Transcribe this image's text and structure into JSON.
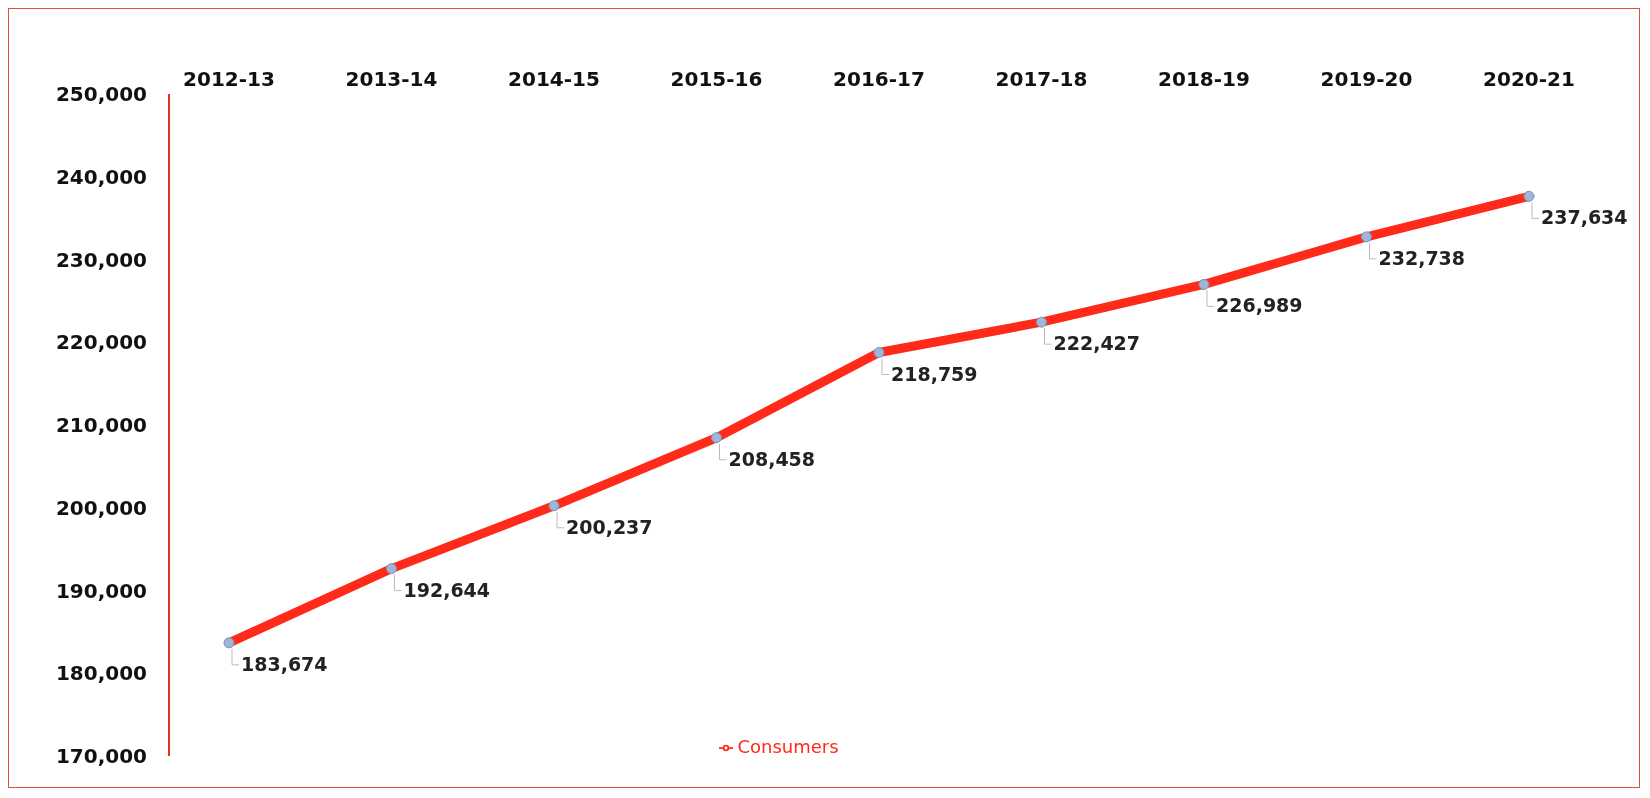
{
  "chart_data": {
    "type": "line",
    "categories": [
      "2012-13",
      "2013-14",
      "2014-15",
      "2015-16",
      "2016-17",
      "2017-18",
      "2018-19",
      "2019-20",
      "2020-21"
    ],
    "series": [
      {
        "name": "Consumers",
        "color": "#ff2a1a",
        "values": [
          183674,
          192644,
          200237,
          208458,
          218759,
          222427,
          226989,
          232738,
          237634
        ],
        "value_labels": [
          "183,674",
          "192,644",
          "200,237",
          "208,458",
          "218,759",
          "222,427",
          "226,989",
          "232,738",
          "237,634"
        ]
      }
    ],
    "ylim": [
      170000,
      250000
    ],
    "yticks": [
      {
        "value": 170000,
        "label": "170,000"
      },
      {
        "value": 180000,
        "label": "180,000"
      },
      {
        "value": 190000,
        "label": "190,000"
      },
      {
        "value": 200000,
        "label": "200,000"
      },
      {
        "value": 210000,
        "label": "210,000"
      },
      {
        "value": 220000,
        "label": "220,000"
      },
      {
        "value": 230000,
        "label": "230,000"
      },
      {
        "value": 240000,
        "label": "240,000"
      },
      {
        "value": 250000,
        "label": "250,000"
      }
    ],
    "marker": "circle",
    "legend": "bottom"
  }
}
